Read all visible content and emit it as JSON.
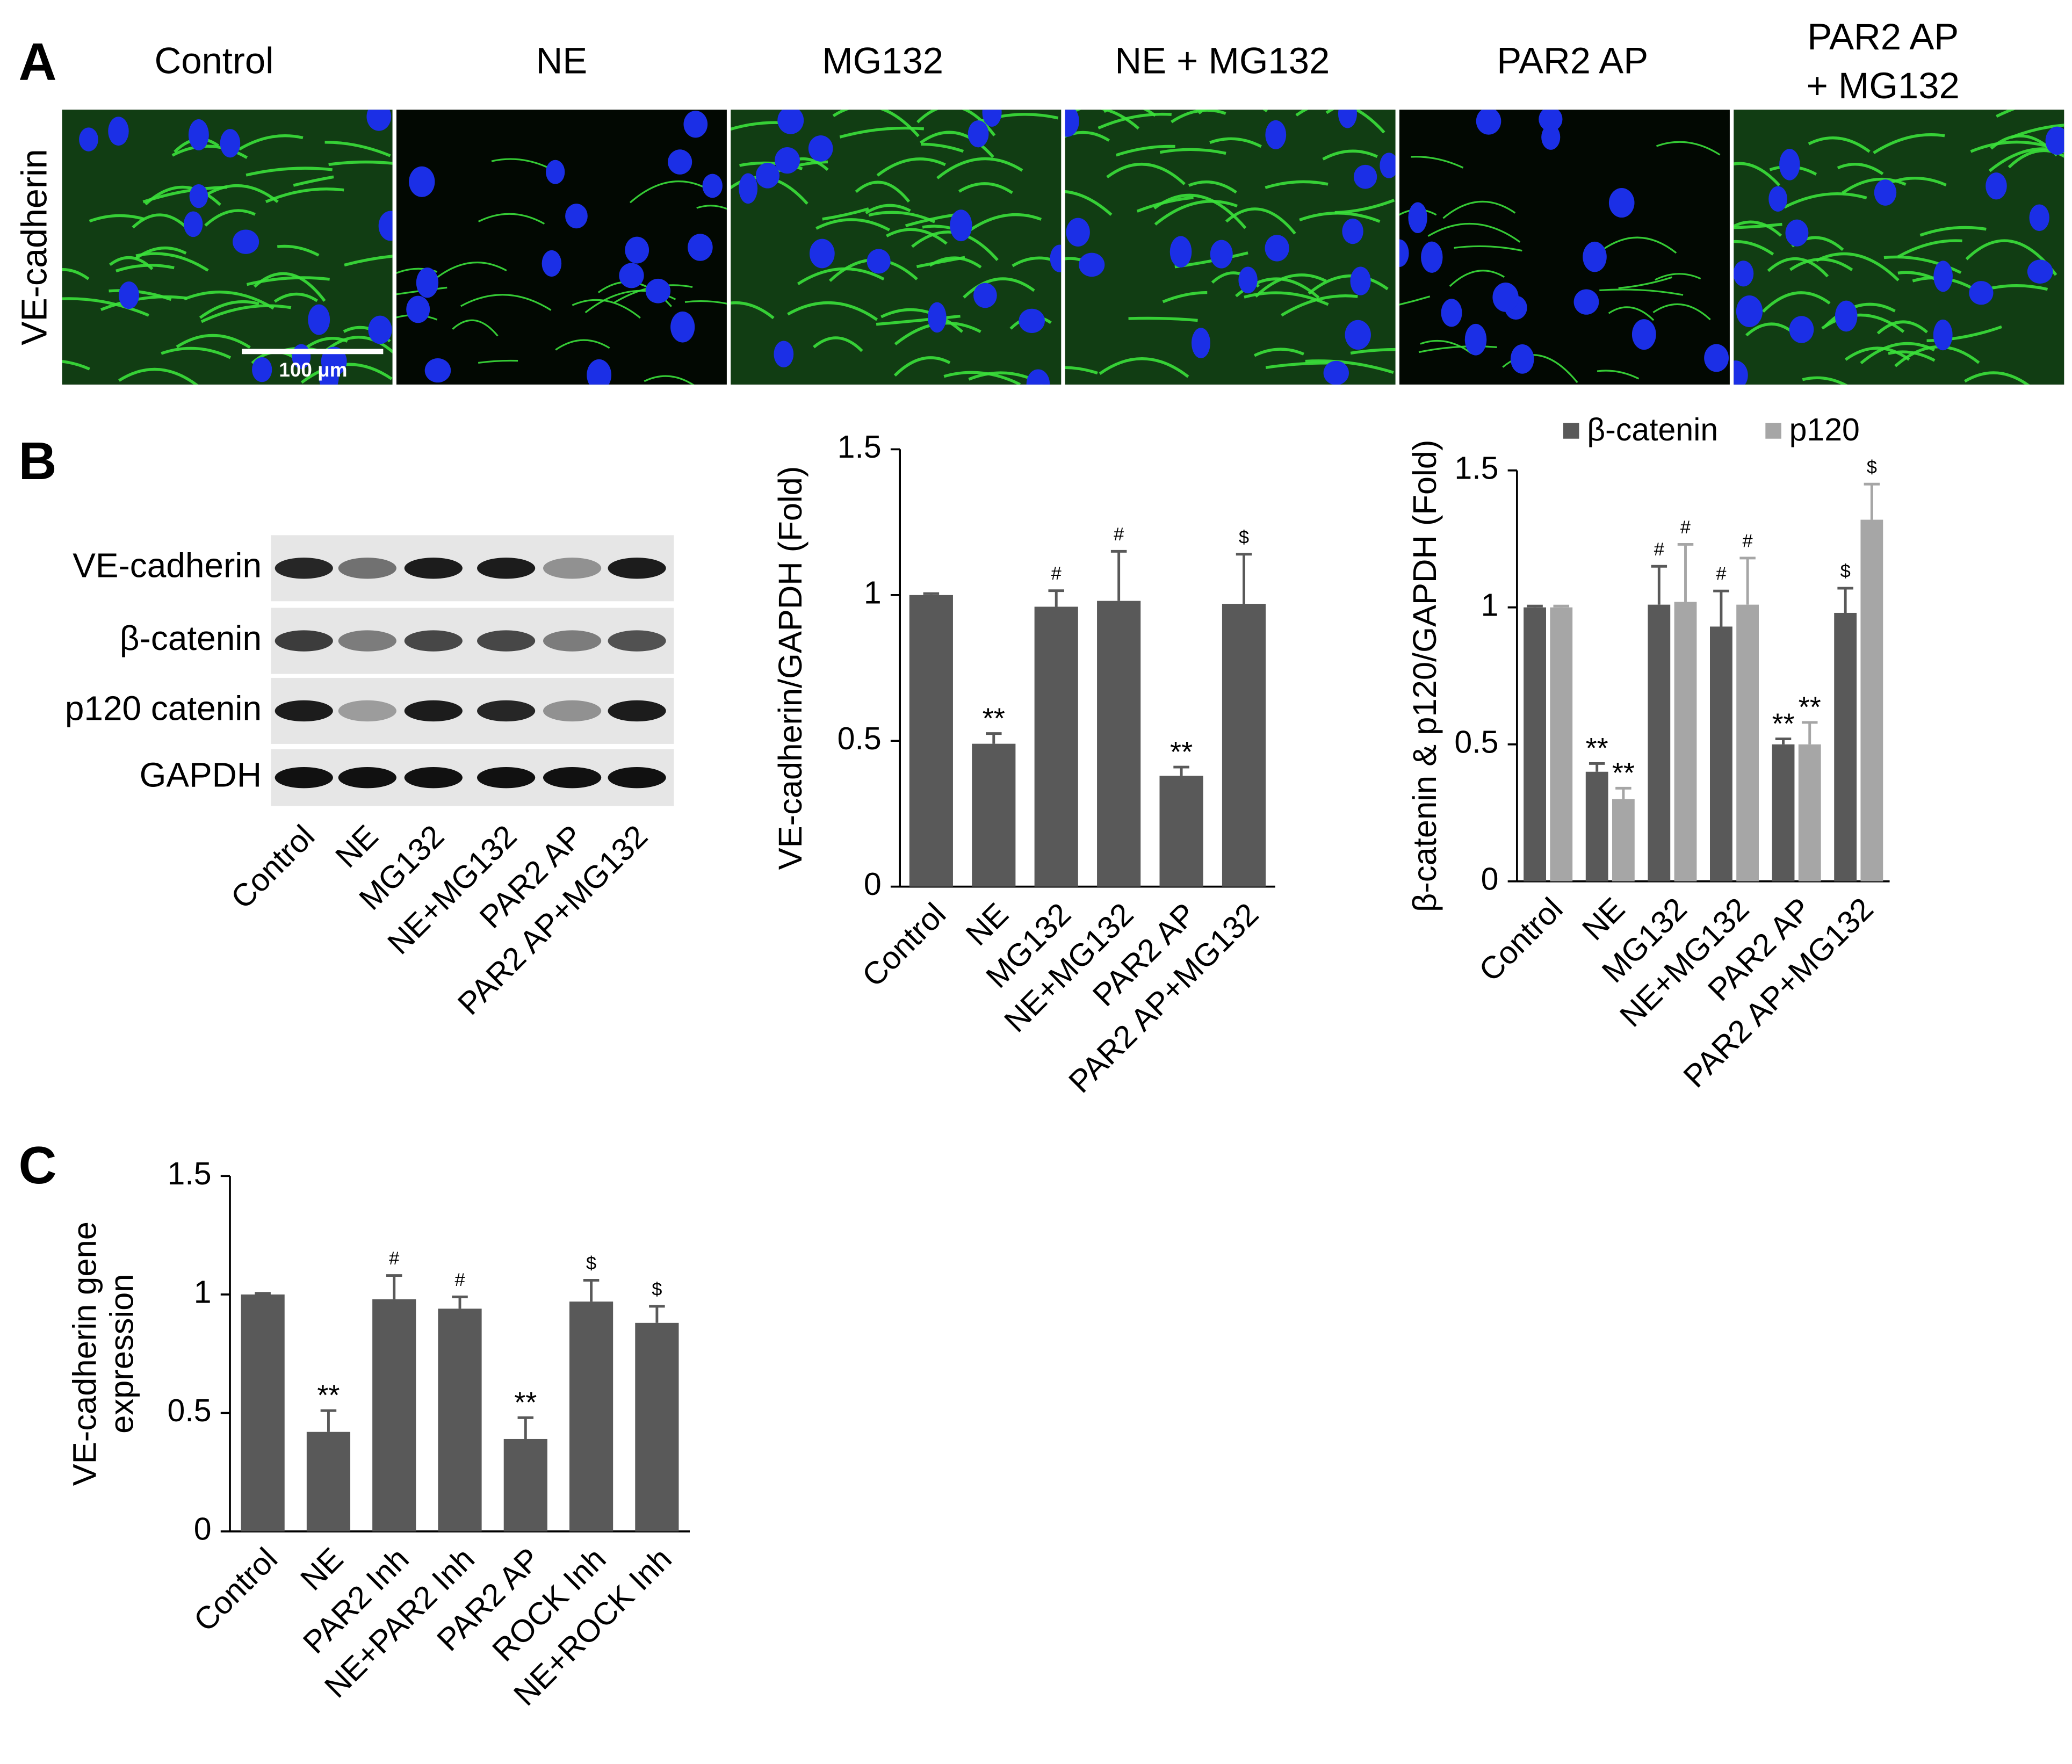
{
  "panel_labels": [
    "A",
    "B",
    "C"
  ],
  "panel_a": {
    "row_label": "VE-cadherin",
    "columns": [
      [
        "Control"
      ],
      [
        "NE"
      ],
      [
        "MG132"
      ],
      [
        "NE + MG132"
      ],
      [
        "PAR2 AP"
      ],
      [
        "PAR2 AP",
        "+ MG132"
      ]
    ],
    "scale_bar": "100 μm"
  },
  "western_blot": {
    "rows": [
      "VE-cadherin",
      "β-catenin",
      "p120 catenin",
      "GAPDH"
    ],
    "columns": [
      "Control",
      "NE",
      "MG132",
      "NE+MG132",
      "PAR2 AP",
      "PAR2 AP+MG132"
    ]
  },
  "chart_data": [
    {
      "type": "bar",
      "ylabel": [
        "VE-cadherin/GAPDH (Fold)"
      ],
      "categories": [
        "Control",
        "NE",
        "MG132",
        "NE+MG132",
        "PAR2 AP",
        "PAR2 AP+MG132"
      ],
      "series": [
        {
          "color": "#595959",
          "values": [
            1.0,
            0.49,
            0.96,
            0.98,
            0.38,
            0.97
          ],
          "errors": [
            0.005,
            0.035,
            0.055,
            0.17,
            0.03,
            0.17
          ],
          "annotations": [
            null,
            "**",
            "#",
            "#",
            "**",
            "$"
          ]
        }
      ],
      "ylim": [
        0,
        1.5
      ],
      "yticks": [
        0,
        0.5,
        1,
        1.5
      ]
    },
    {
      "type": "bar",
      "ylabel": [
        "β-catenin & p120/GAPDH (Fold)"
      ],
      "categories": [
        "Control",
        "NE",
        "MG132",
        "NE+MG132",
        "PAR2 AP",
        "PAR2 AP+MG132"
      ],
      "series": [
        {
          "name": "β-catenin",
          "color": "#595959",
          "values": [
            1.0,
            0.4,
            1.01,
            0.93,
            0.5,
            0.98
          ],
          "errors": [
            0.005,
            0.03,
            0.14,
            0.13,
            0.02,
            0.09
          ],
          "annotations": [
            null,
            "**",
            "#",
            "#",
            "**",
            "$"
          ]
        },
        {
          "name": "p120",
          "color": "#a6a6a6",
          "values": [
            1.0,
            0.3,
            1.02,
            1.01,
            0.5,
            1.32
          ],
          "errors": [
            0.005,
            0.04,
            0.21,
            0.17,
            0.08,
            0.13
          ],
          "annotations": [
            null,
            "**",
            "#",
            "#",
            "**",
            "$"
          ]
        }
      ],
      "ylim": [
        0,
        1.5
      ],
      "yticks": [
        0,
        0.5,
        1,
        1.5
      ],
      "legend": "top"
    },
    {
      "type": "bar",
      "ylabel": [
        "VE-cadherin gene",
        "expression"
      ],
      "categories": [
        "Control",
        "NE",
        "PAR2 Inh",
        "NE+PAR2 Inh",
        "PAR2 AP",
        "ROCK Inh",
        "NE+ROCK Inh"
      ],
      "series": [
        {
          "color": "#595959",
          "values": [
            1.0,
            0.42,
            0.98,
            0.94,
            0.39,
            0.97,
            0.88
          ],
          "errors": [
            0.005,
            0.09,
            0.1,
            0.05,
            0.09,
            0.09,
            0.07
          ],
          "annotations": [
            null,
            "**",
            "#",
            "#",
            "**",
            "$",
            "$"
          ]
        }
      ],
      "ylim": [
        0,
        1.5
      ],
      "yticks": [
        0,
        0.5,
        1,
        1.5
      ]
    }
  ]
}
